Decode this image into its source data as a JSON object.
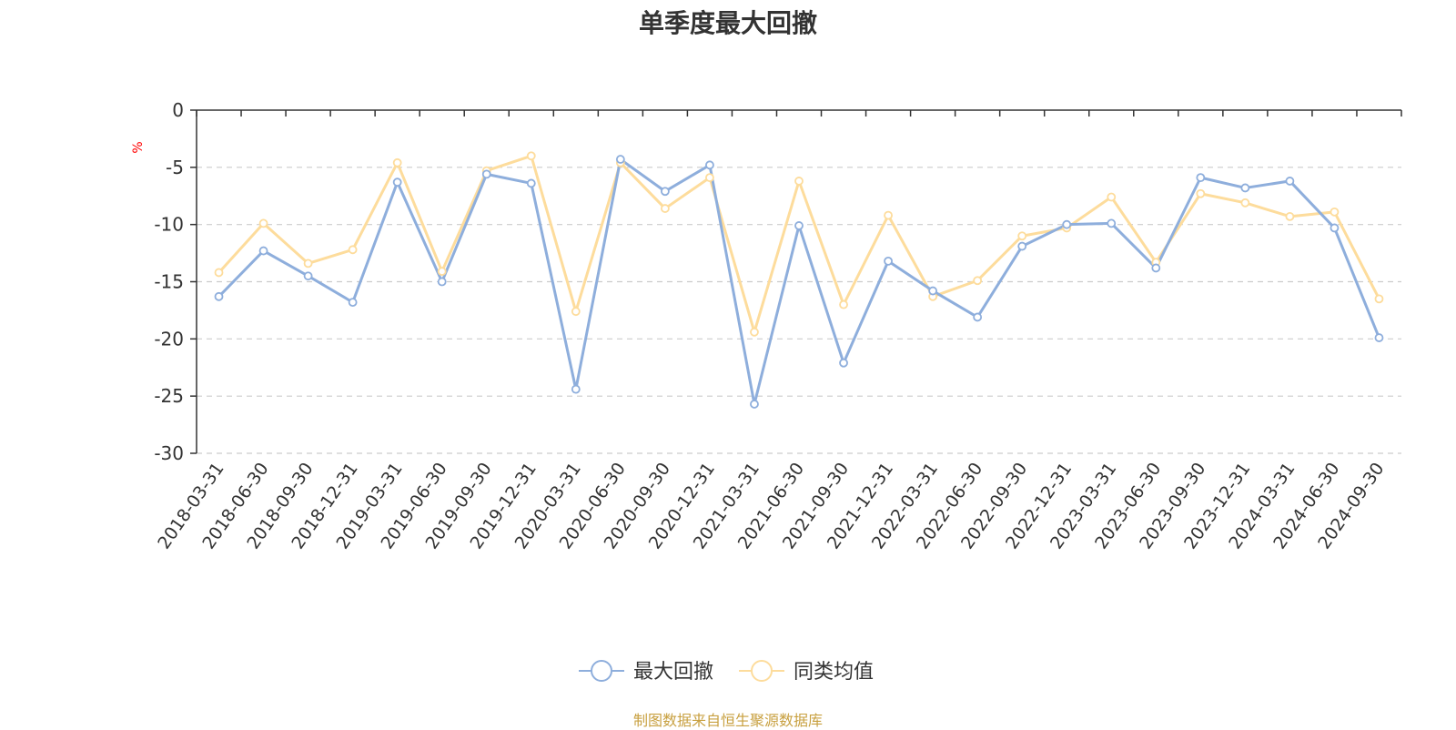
{
  "chart_data": {
    "type": "line",
    "title": "单季度最大回撤",
    "ylabel": "%",
    "ylim": [
      -30,
      0
    ],
    "yticks": [
      0,
      -5,
      -10,
      -15,
      -20,
      -25,
      -30
    ],
    "grid": true,
    "legend_position": "bottom",
    "categories": [
      "2018-03-31",
      "2018-06-30",
      "2018-09-30",
      "2018-12-31",
      "2019-03-31",
      "2019-06-30",
      "2019-09-30",
      "2019-12-31",
      "2020-03-31",
      "2020-06-30",
      "2020-09-30",
      "2020-12-31",
      "2021-03-31",
      "2021-06-30",
      "2021-09-30",
      "2021-12-31",
      "2022-03-31",
      "2022-06-30",
      "2022-09-30",
      "2022-12-31",
      "2023-03-31",
      "2023-06-30",
      "2023-09-30",
      "2023-12-31",
      "2024-03-31",
      "2024-06-30",
      "2024-09-30"
    ],
    "series": [
      {
        "name": "最大回撤",
        "color": "#8eaedc",
        "values": [
          -16.3,
          -12.3,
          -14.5,
          -16.8,
          -6.3,
          -15.0,
          -5.6,
          -6.4,
          -24.4,
          -4.3,
          -7.1,
          -4.8,
          -25.7,
          -10.1,
          -22.1,
          -13.2,
          -15.8,
          -18.1,
          -11.9,
          -10.0,
          -9.9,
          -13.8,
          -5.9,
          -6.8,
          -6.2,
          -10.3,
          -19.9
        ]
      },
      {
        "name": "同类均值",
        "color": "#fddc9c",
        "values": [
          -14.2,
          -9.9,
          -13.4,
          -12.2,
          -4.6,
          -14.1,
          -5.3,
          -4.0,
          -17.6,
          -4.6,
          -8.6,
          -5.9,
          -19.4,
          -6.2,
          -17.0,
          -9.2,
          -16.3,
          -14.9,
          -11.0,
          -10.3,
          -7.6,
          -13.3,
          -7.3,
          -8.1,
          -9.3,
          -8.9,
          -16.5
        ]
      }
    ]
  },
  "footer": {
    "source": "制图数据来自恒生聚源数据库",
    "source_color": "#c8a040"
  }
}
